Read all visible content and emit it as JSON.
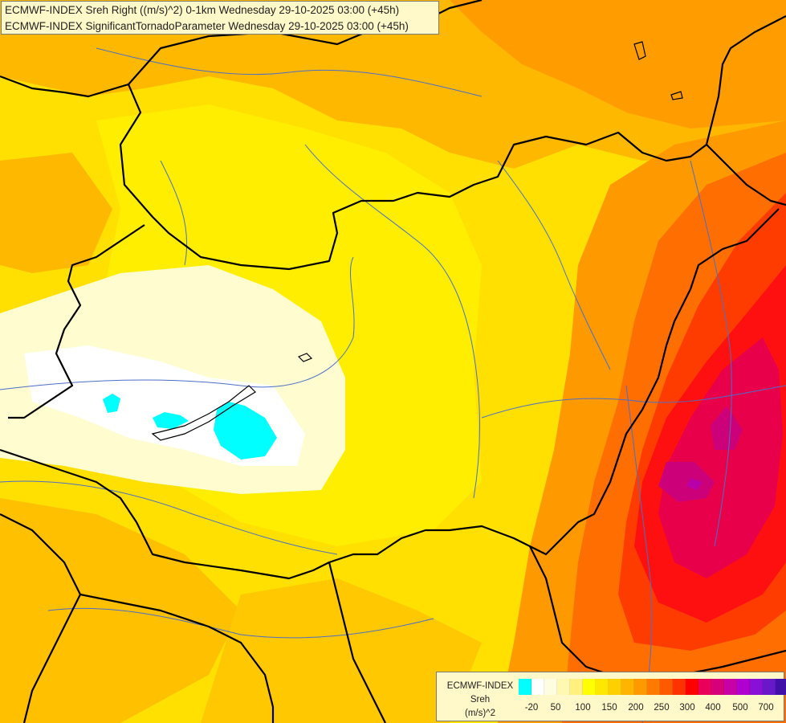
{
  "title": {
    "line1": "ECMWF-INDEX Sreh Right ((m/s)^2) 0-1km Wednesday 29-10-2025 03:00 (+45h)",
    "line2": "ECMWF-INDEX SignificantTornadoParameter Wednesday 29-10-2025 03:00 (+45h)"
  },
  "legend": {
    "name_line1": "ECMWF-INDEX",
    "name_line2": "Sreh",
    "name_line3": "(m/s)^2",
    "colors": [
      "#00ffff",
      "#ffffff",
      "#fffde0",
      "#fff8b0",
      "#fff080",
      "#ffff00",
      "#ffe800",
      "#ffd000",
      "#ffb400",
      "#ff9900",
      "#ff7a00",
      "#ff5a00",
      "#ff3200",
      "#ff0000",
      "#e8005a",
      "#d8007a",
      "#c800a8",
      "#b000d0",
      "#8a10d8",
      "#6818c8",
      "#4010a8",
      "#1a0080",
      "#000070"
    ],
    "tick_labels": [
      "-20",
      "50",
      "100",
      "150",
      "200",
      "250",
      "300",
      "400",
      "500",
      "700"
    ]
  },
  "colors": {
    "base_yellow": "#ffe000",
    "pale": "#fffbd0",
    "cyan": "#00ffff",
    "orange": "#ff9b00",
    "red": "#ff1e1e",
    "magenta": "#d0008a"
  }
}
